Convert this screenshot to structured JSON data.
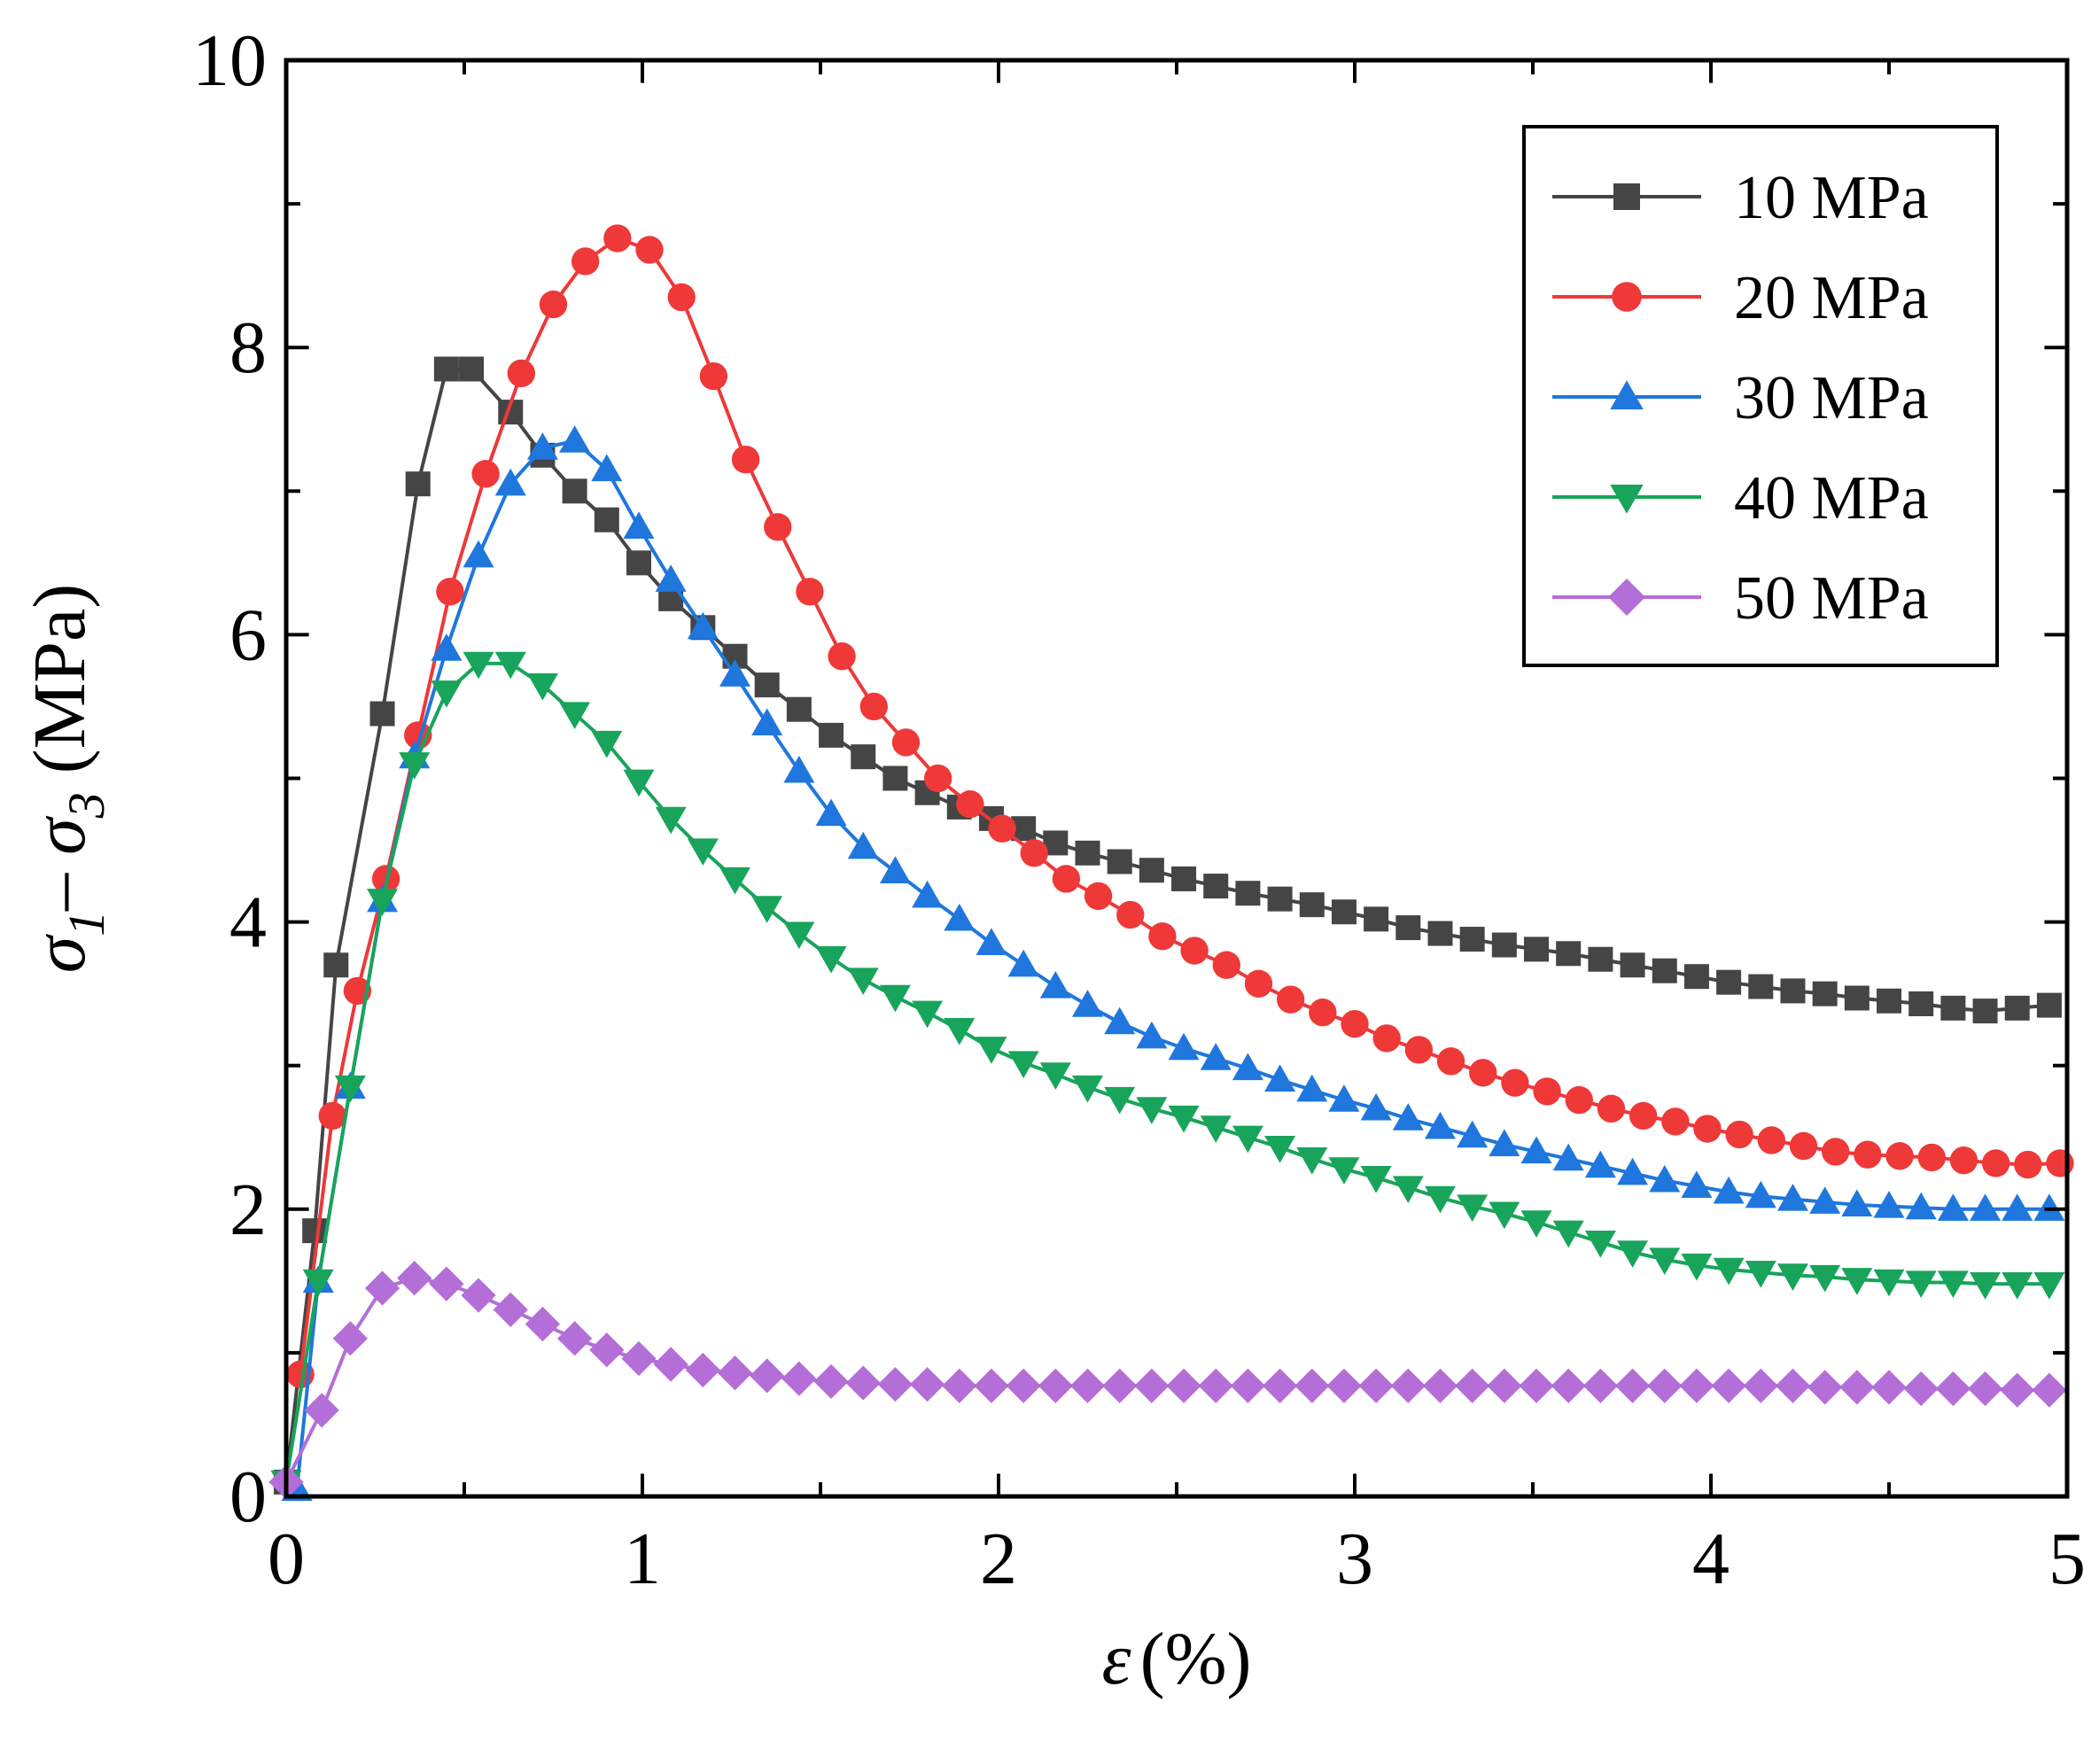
{
  "chart_data": {
    "type": "line",
    "xlabel": {
      "symbol": "ε",
      "unit": "(%)"
    },
    "ylabel": {
      "symbol1": "σ",
      "sub1": "1",
      "dash": "– ",
      "symbol2": "σ",
      "sub2": "3",
      "unit": " (MPa)"
    },
    "xlim": [
      0,
      5
    ],
    "ylim": [
      0,
      10
    ],
    "xticks": [
      0,
      1,
      2,
      3,
      4,
      5
    ],
    "yticks": [
      0,
      2,
      4,
      6,
      8,
      10
    ],
    "x_tick_labels": [
      "0",
      "1",
      "2",
      "3",
      "4",
      "5"
    ],
    "y_tick_labels": [
      "0",
      "2",
      "4",
      "6",
      "8",
      "10"
    ],
    "legend_position": "top-right",
    "grid": false,
    "series": [
      {
        "name": "10 MPa",
        "color": "#454545",
        "marker": "square",
        "x": [
          0.0,
          0.08,
          0.14,
          0.27,
          0.37,
          0.45,
          0.52,
          0.63,
          0.72,
          0.81,
          0.9,
          0.99,
          1.08,
          1.17,
          1.26,
          1.35,
          1.44,
          1.53,
          1.62,
          1.71,
          1.8,
          1.89,
          1.98,
          2.07,
          2.16,
          2.25,
          2.34,
          2.43,
          2.52,
          2.61,
          2.7,
          2.79,
          2.88,
          2.97,
          3.06,
          3.15,
          3.24,
          3.33,
          3.42,
          3.51,
          3.6,
          3.69,
          3.78,
          3.87,
          3.96,
          4.05,
          4.14,
          4.23,
          4.32,
          4.41,
          4.5,
          4.59,
          4.68,
          4.77,
          4.86,
          4.95
        ],
        "y": [
          0.1,
          1.85,
          3.7,
          5.45,
          7.05,
          7.85,
          7.85,
          7.55,
          7.25,
          7.0,
          6.8,
          6.5,
          6.25,
          6.05,
          5.85,
          5.65,
          5.48,
          5.3,
          5.15,
          5.0,
          4.9,
          4.8,
          4.72,
          4.65,
          4.55,
          4.48,
          4.42,
          4.36,
          4.3,
          4.25,
          4.2,
          4.16,
          4.12,
          4.07,
          4.02,
          3.96,
          3.92,
          3.88,
          3.84,
          3.81,
          3.78,
          3.74,
          3.7,
          3.66,
          3.62,
          3.58,
          3.55,
          3.52,
          3.5,
          3.47,
          3.45,
          3.43,
          3.4,
          3.38,
          3.4,
          3.42
        ]
      },
      {
        "name": "20 MPa",
        "color": "#ef3838",
        "marker": "circle",
        "x": [
          0.04,
          0.13,
          0.2,
          0.28,
          0.37,
          0.46,
          0.56,
          0.66,
          0.75,
          0.84,
          0.93,
          1.02,
          1.11,
          1.2,
          1.29,
          1.38,
          1.47,
          1.56,
          1.65,
          1.74,
          1.83,
          1.92,
          2.01,
          2.1,
          2.19,
          2.28,
          2.37,
          2.46,
          2.55,
          2.64,
          2.73,
          2.82,
          2.91,
          3.0,
          3.09,
          3.18,
          3.27,
          3.36,
          3.45,
          3.54,
          3.63,
          3.72,
          3.81,
          3.9,
          3.99,
          4.08,
          4.17,
          4.26,
          4.35,
          4.44,
          4.53,
          4.62,
          4.71,
          4.8,
          4.89,
          4.98
        ],
        "y": [
          0.85,
          2.65,
          3.52,
          4.3,
          5.3,
          6.3,
          7.12,
          7.82,
          8.3,
          8.6,
          8.76,
          8.68,
          8.35,
          7.8,
          7.22,
          6.75,
          6.3,
          5.85,
          5.5,
          5.25,
          5.0,
          4.82,
          4.65,
          4.48,
          4.3,
          4.18,
          4.05,
          3.9,
          3.8,
          3.7,
          3.57,
          3.46,
          3.37,
          3.29,
          3.19,
          3.11,
          3.03,
          2.95,
          2.88,
          2.82,
          2.76,
          2.7,
          2.65,
          2.61,
          2.56,
          2.52,
          2.48,
          2.44,
          2.4,
          2.38,
          2.37,
          2.36,
          2.34,
          2.32,
          2.31,
          2.32
        ]
      },
      {
        "name": "30 MPa",
        "color": "#1f77dd",
        "marker": "triangle-up",
        "x": [
          0.03,
          0.09,
          0.18,
          0.27,
          0.36,
          0.45,
          0.54,
          0.63,
          0.72,
          0.81,
          0.9,
          0.99,
          1.08,
          1.17,
          1.26,
          1.35,
          1.44,
          1.53,
          1.62,
          1.71,
          1.8,
          1.89,
          1.98,
          2.07,
          2.16,
          2.25,
          2.34,
          2.43,
          2.52,
          2.61,
          2.7,
          2.79,
          2.88,
          2.97,
          3.06,
          3.15,
          3.24,
          3.33,
          3.42,
          3.51,
          3.6,
          3.69,
          3.78,
          3.87,
          3.96,
          4.05,
          4.14,
          4.23,
          4.32,
          4.41,
          4.5,
          4.59,
          4.68,
          4.77,
          4.86,
          4.95
        ],
        "y": [
          0.05,
          1.5,
          2.85,
          4.15,
          5.15,
          5.9,
          6.55,
          7.05,
          7.3,
          7.35,
          7.15,
          6.75,
          6.38,
          6.05,
          5.72,
          5.38,
          5.05,
          4.75,
          4.52,
          4.35,
          4.18,
          4.02,
          3.85,
          3.7,
          3.55,
          3.42,
          3.3,
          3.2,
          3.12,
          3.05,
          2.98,
          2.9,
          2.83,
          2.76,
          2.7,
          2.63,
          2.57,
          2.51,
          2.45,
          2.4,
          2.35,
          2.3,
          2.25,
          2.2,
          2.16,
          2.12,
          2.09,
          2.07,
          2.05,
          2.03,
          2.02,
          2.01,
          2.0,
          2.0,
          2.0,
          2.0
        ]
      },
      {
        "name": "40 MPa",
        "color": "#18a45a",
        "marker": "triangle-down",
        "x": [
          0.0,
          0.09,
          0.18,
          0.27,
          0.36,
          0.45,
          0.54,
          0.63,
          0.72,
          0.81,
          0.9,
          0.99,
          1.08,
          1.17,
          1.26,
          1.35,
          1.44,
          1.53,
          1.62,
          1.71,
          1.8,
          1.89,
          1.98,
          2.07,
          2.16,
          2.25,
          2.34,
          2.43,
          2.52,
          2.61,
          2.7,
          2.79,
          2.88,
          2.97,
          3.06,
          3.15,
          3.24,
          3.33,
          3.42,
          3.51,
          3.6,
          3.69,
          3.78,
          3.87,
          3.96,
          4.05,
          4.14,
          4.23,
          4.32,
          4.41,
          4.5,
          4.59,
          4.68,
          4.77,
          4.86,
          4.95
        ],
        "y": [
          0.1,
          1.5,
          2.85,
          4.15,
          5.1,
          5.6,
          5.8,
          5.8,
          5.65,
          5.45,
          5.25,
          4.98,
          4.72,
          4.5,
          4.3,
          4.1,
          3.92,
          3.75,
          3.6,
          3.48,
          3.37,
          3.25,
          3.12,
          3.02,
          2.94,
          2.85,
          2.77,
          2.7,
          2.64,
          2.57,
          2.5,
          2.43,
          2.35,
          2.28,
          2.22,
          2.15,
          2.08,
          2.02,
          1.97,
          1.91,
          1.84,
          1.77,
          1.7,
          1.65,
          1.61,
          1.58,
          1.56,
          1.54,
          1.53,
          1.51,
          1.5,
          1.49,
          1.49,
          1.48,
          1.48,
          1.48
        ]
      },
      {
        "name": "50 MPa",
        "color": "#b46ed8",
        "marker": "diamond",
        "x": [
          0.0,
          0.1,
          0.18,
          0.27,
          0.36,
          0.45,
          0.54,
          0.63,
          0.72,
          0.81,
          0.9,
          0.99,
          1.08,
          1.17,
          1.26,
          1.35,
          1.44,
          1.53,
          1.62,
          1.71,
          1.8,
          1.89,
          1.98,
          2.07,
          2.16,
          2.25,
          2.34,
          2.43,
          2.52,
          2.61,
          2.7,
          2.79,
          2.88,
          2.97,
          3.06,
          3.15,
          3.24,
          3.33,
          3.42,
          3.51,
          3.6,
          3.69,
          3.78,
          3.87,
          3.96,
          4.05,
          4.14,
          4.23,
          4.32,
          4.41,
          4.5,
          4.59,
          4.68,
          4.77,
          4.86,
          4.95
        ],
        "y": [
          0.1,
          0.6,
          1.1,
          1.45,
          1.52,
          1.48,
          1.4,
          1.3,
          1.2,
          1.1,
          1.02,
          0.96,
          0.92,
          0.88,
          0.86,
          0.84,
          0.82,
          0.8,
          0.79,
          0.78,
          0.78,
          0.77,
          0.77,
          0.77,
          0.77,
          0.77,
          0.77,
          0.77,
          0.77,
          0.77,
          0.77,
          0.77,
          0.77,
          0.77,
          0.77,
          0.77,
          0.77,
          0.77,
          0.77,
          0.77,
          0.77,
          0.77,
          0.77,
          0.77,
          0.77,
          0.77,
          0.77,
          0.77,
          0.76,
          0.76,
          0.76,
          0.75,
          0.75,
          0.75,
          0.74,
          0.74
        ]
      }
    ]
  }
}
